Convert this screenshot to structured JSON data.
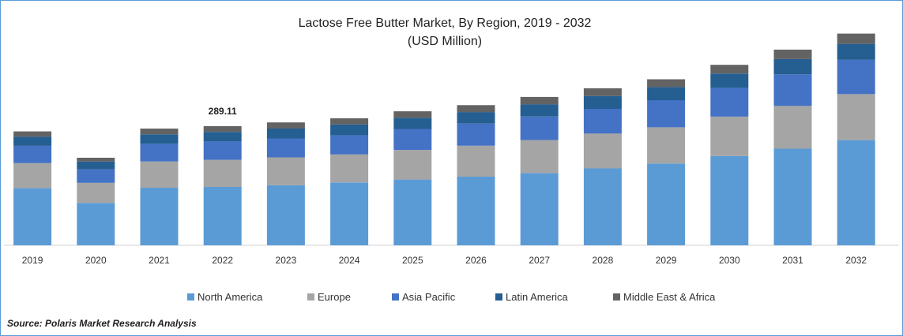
{
  "chart_data": {
    "type": "bar",
    "stacked": true,
    "title": "Lactose Free Butter Market, By Region, 2019 - 2032",
    "subtitle": "(USD Million)",
    "xlabel": "",
    "ylabel": "",
    "categories": [
      "2019",
      "2020",
      "2021",
      "2022",
      "2023",
      "2024",
      "2025",
      "2026",
      "2027",
      "2028",
      "2029",
      "2030",
      "2031",
      "2032"
    ],
    "series": [
      {
        "name": "North America",
        "color": "#5b9bd5",
        "values": [
          139,
          103,
          140,
          142,
          146,
          153,
          160,
          167,
          176,
          187,
          199,
          217,
          235,
          256
        ]
      },
      {
        "name": "Europe",
        "color": "#a5a5a5",
        "values": [
          61,
          49,
          64,
          66,
          68,
          68,
          72,
          75,
          80,
          85,
          88,
          96,
          104,
          112
        ]
      },
      {
        "name": "Asia Pacific",
        "color": "#4472c4",
        "values": [
          42,
          33,
          43,
          45,
          46,
          47,
          51,
          54,
          57,
          60,
          66,
          70,
          77,
          83
        ]
      },
      {
        "name": "Latin America",
        "color": "#255e91",
        "values": [
          22,
          19,
          23,
          23,
          24,
          26,
          27,
          28,
          30,
          31,
          32,
          35,
          37,
          39
        ]
      },
      {
        "name": "Middle East & Africa",
        "color": "#636363",
        "values": [
          13,
          9,
          14,
          14,
          15,
          15,
          16,
          17,
          18,
          19,
          19,
          21,
          23,
          25
        ]
      }
    ],
    "annotations": [
      {
        "category": "2022",
        "text": "289.11"
      }
    ],
    "ylim": [
      0,
      520
    ],
    "grid": false,
    "legend_position": "bottom-center"
  },
  "source": "Source: Polaris Market Research Analysis"
}
